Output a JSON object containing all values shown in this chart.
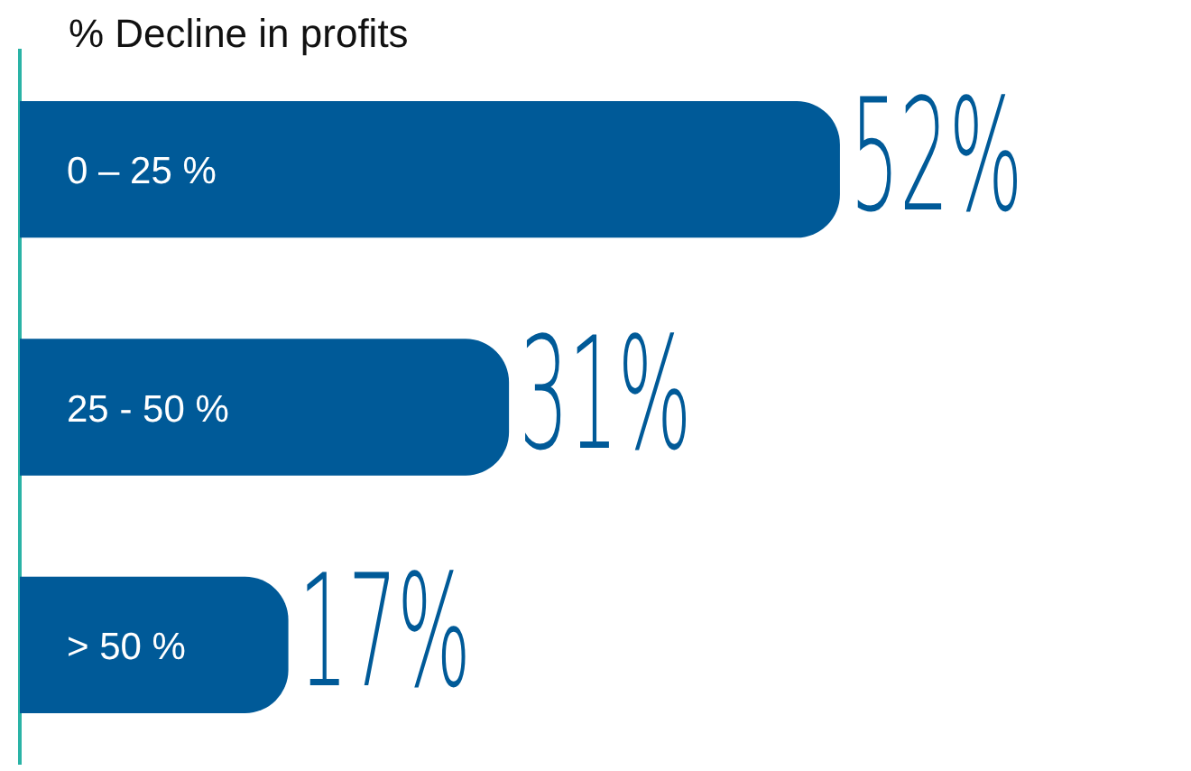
{
  "chart_data": {
    "type": "bar",
    "orientation": "horizontal",
    "title": "% Decline in profits",
    "categories": [
      "0 – 25 %",
      "25 - 50 %",
      "> 50 %"
    ],
    "values": [
      52,
      31,
      17
    ],
    "value_labels": [
      "52%",
      "31%",
      "17%"
    ],
    "color": "#005a98",
    "tick_labels": "y",
    "grid": false,
    "legend": false
  }
}
